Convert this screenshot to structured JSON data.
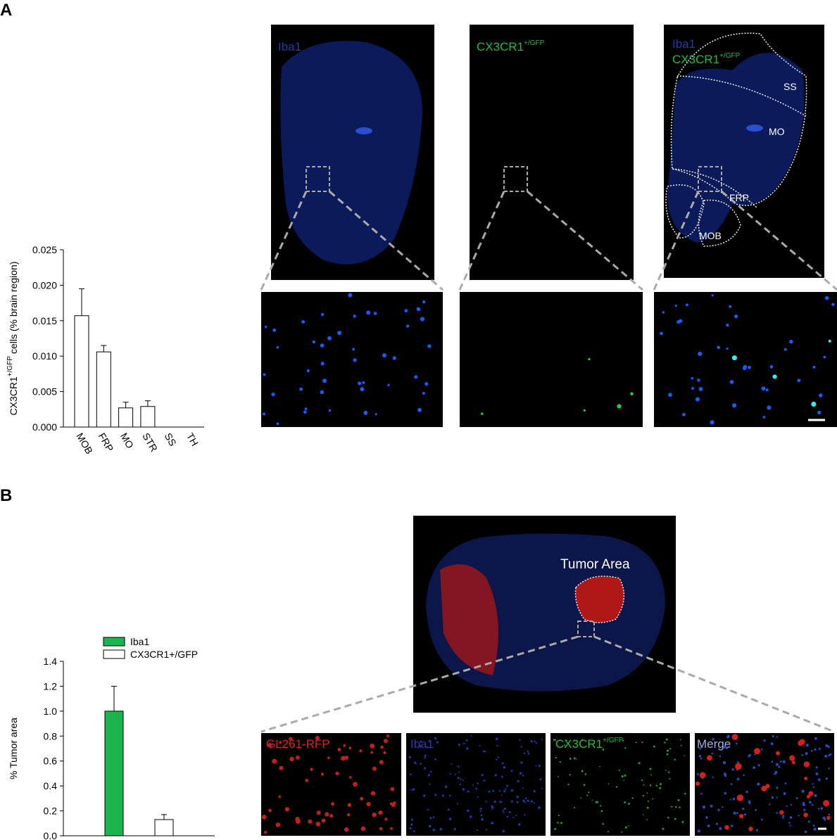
{
  "panel_labels": [
    "A",
    "B"
  ],
  "chart_data": [
    {
      "type": "bar",
      "ylabel": {
        "base": "CX3CR1",
        "sup": "+/GFP",
        "suffix": "cells (% brain region)"
      },
      "categories": [
        "MOB",
        "FRP",
        "MO",
        "STR",
        "SS",
        "TH"
      ],
      "values": [
        0.0157,
        0.0106,
        0.0027,
        0.0029,
        0,
        0
      ],
      "errors": [
        0.0038,
        0.0009,
        0.0008,
        0.0008,
        0,
        0
      ],
      "color": "#ffffff",
      "ylim": [
        0,
        0.025
      ],
      "yticks": [
        {
          "value": 0,
          "label": "0.000"
        },
        0.005,
        {
          "value": 0.01,
          "label": "0.010"
        },
        0.015,
        {
          "value": 0.02,
          "label": "0.020"
        },
        0.025
      ]
    },
    {
      "type": "grouped_bar",
      "ylabel": "% Tumor area",
      "categories": [
        null
      ],
      "series": [
        {
          "name": "Iba1",
          "color": "#1db34f",
          "values": [
            1.0
          ],
          "errors": [
            0.2
          ]
        },
        {
          "name": "CX3CR1+/GFP",
          "color": "#ffffff",
          "values": [
            0.13
          ],
          "errors": [
            0.04
          ]
        }
      ],
      "ylim": [
        0,
        1.4
      ],
      "yticks": [
        {
          "value": 0,
          "label": "0.0"
        },
        0.2,
        0.4,
        0.6,
        0.8,
        {
          "value": 1,
          "label": "1.0"
        },
        1.2,
        1.4
      ],
      "legend": "upper left"
    }
  ],
  "panel_a_images": {
    "iba1": "Iba1",
    "gfp": {
      "base": "CX3CR1",
      "sup": "+/GFP"
    },
    "merge": {
      "line1": "Iba1",
      "base": "CX3CR1",
      "sup": "+/GFP"
    },
    "regions": [
      "SS",
      "MO",
      "FRP",
      "MOB"
    ]
  },
  "panel_b_images": {
    "overview": "Tumor Area",
    "tiles": [
      "GL261-RFP",
      "Iba1",
      {
        "base": "CX3CR1",
        "sup": "+/GFP"
      },
      "Merge"
    ]
  }
}
